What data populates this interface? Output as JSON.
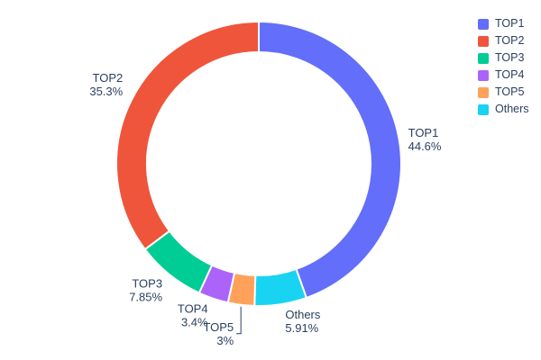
{
  "chart_data": {
    "type": "pie",
    "title": "",
    "hole": 0.785,
    "labels_outside": true,
    "legend_position": "top-right",
    "background_color": "#ffffff",
    "text_color": "#2a3f5f",
    "slice_gap_color": "#ffffff",
    "segments": [
      {
        "label": "TOP1",
        "value": 44.6,
        "percent_label": "44.6%",
        "color": "#636EFA",
        "leader": false
      },
      {
        "label": "TOP2",
        "value": 35.3,
        "percent_label": "35.3%",
        "color": "#EF553B",
        "leader": false
      },
      {
        "label": "TOP3",
        "value": 7.85,
        "percent_label": "7.85%",
        "color": "#00CC96",
        "leader": false
      },
      {
        "label": "TOP4",
        "value": 3.4,
        "percent_label": "3.4%",
        "color": "#AB63FA",
        "leader": false
      },
      {
        "label": "TOP5",
        "value": 3,
        "percent_label": "3%",
        "color": "#FFA15A",
        "leader": true
      },
      {
        "label": "Others",
        "value": 5.91,
        "percent_label": "5.91%",
        "color": "#19D3F3",
        "leader": false
      }
    ],
    "legend_entries": [
      "TOP1",
      "TOP2",
      "TOP3",
      "TOP4",
      "TOP5",
      "Others"
    ]
  }
}
